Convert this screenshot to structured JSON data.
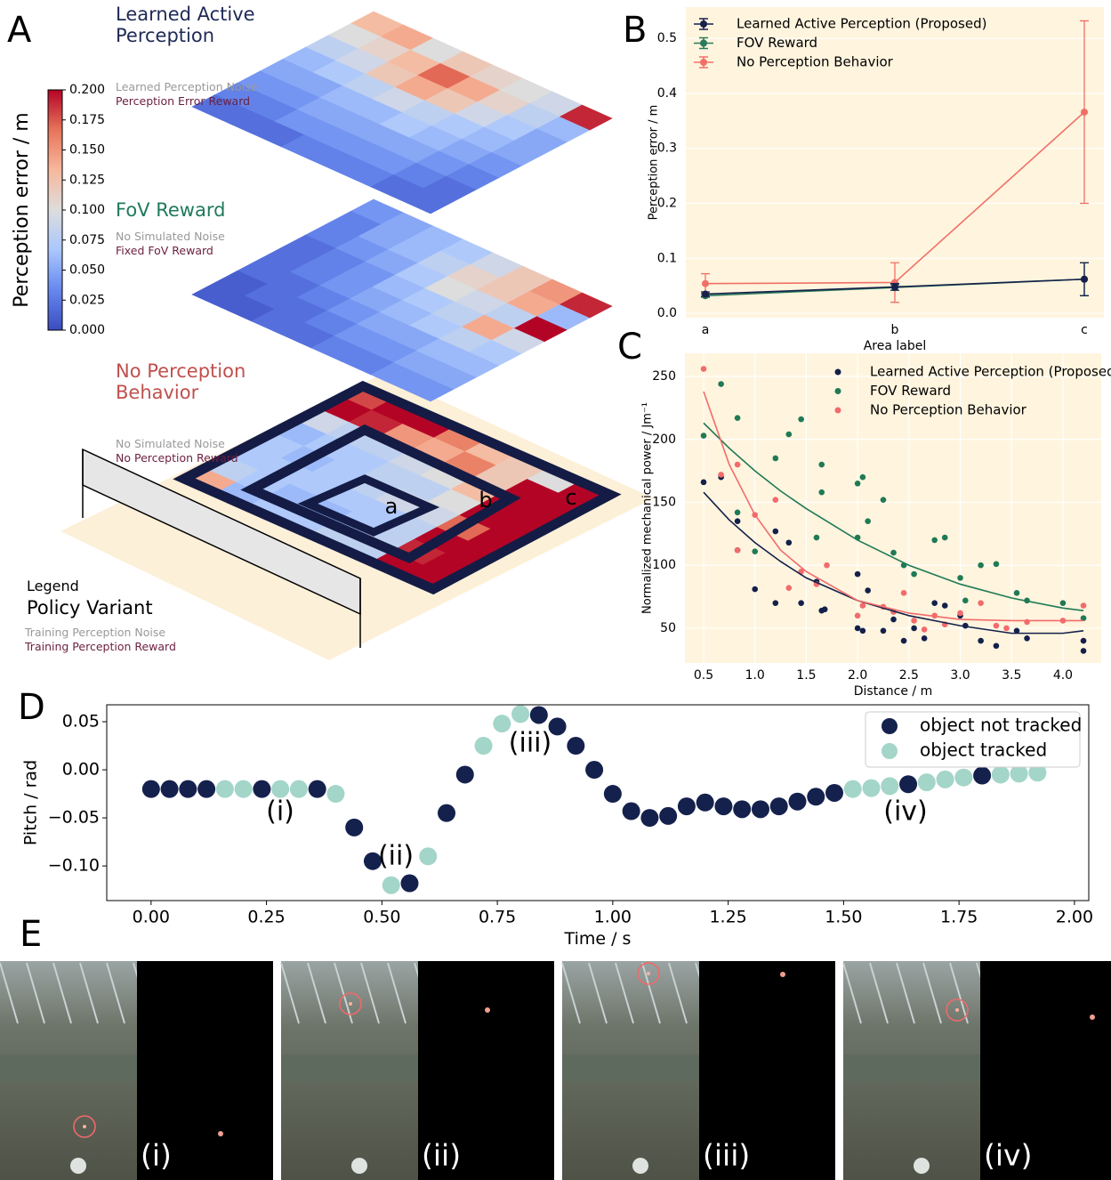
{
  "panel_labels": [
    "A",
    "B",
    "C",
    "D",
    "E"
  ],
  "heatmaps": {
    "colorbar": {
      "label": "Perception error / m",
      "lim": [
        0,
        0.2
      ],
      "ticks": [
        {
          "value": 0,
          "label": "0.000"
        },
        0.025,
        {
          "value": 0.05,
          "label": "0.050"
        },
        0.075,
        {
          "value": 0.1,
          "label": "0.100"
        },
        0.125,
        {
          "value": 0.15,
          "label": "0.150"
        },
        0.175,
        {
          "value": 0.2,
          "label": "0.200"
        }
      ],
      "colormap": [
        "#3b4cc0",
        "#6688ee",
        "#aac7fd",
        "#dddddd",
        "#f7b89c",
        "#e7745b",
        "#b40426"
      ]
    },
    "layers": [
      {
        "title": "Learned Active Perception",
        "noise": "Learned Perception Noise",
        "reward": "Perception Error Reward",
        "title_color": "#1f2a55",
        "grid": [
          [
            0.13,
            0.14,
            0.1,
            0.12,
            0.11,
            0.1,
            0.09,
            0.19
          ],
          [
            0.1,
            0.11,
            0.13,
            0.17,
            0.14,
            0.11,
            0.08,
            0.06
          ],
          [
            0.08,
            0.09,
            0.12,
            0.14,
            0.12,
            0.09,
            0.07,
            0.05
          ],
          [
            0.06,
            0.07,
            0.08,
            0.09,
            0.08,
            0.07,
            0.06,
            0.05
          ],
          [
            0.05,
            0.05,
            0.06,
            0.06,
            0.07,
            0.06,
            0.05,
            0.04
          ],
          [
            0.04,
            0.04,
            0.05,
            0.05,
            0.05,
            0.05,
            0.04,
            0.03
          ],
          [
            0.03,
            0.03,
            0.04,
            0.04,
            0.04,
            0.04,
            0.03,
            0.02
          ],
          [
            0.02,
            0.02,
            0.02,
            0.03,
            0.03,
            0.03,
            0.02,
            0.02
          ]
        ]
      },
      {
        "title": "FoV Reward",
        "noise": "No Simulated Noise",
        "reward": "Fixed FoV Reward",
        "title_color": "#1f7a5a",
        "grid": [
          [
            0.04,
            0.05,
            0.06,
            0.07,
            0.09,
            0.12,
            0.15,
            0.19
          ],
          [
            0.03,
            0.05,
            0.06,
            0.08,
            0.11,
            0.12,
            0.14,
            0.06
          ],
          [
            0.03,
            0.04,
            0.05,
            0.07,
            0.1,
            0.09,
            0.08,
            0.2
          ],
          [
            0.02,
            0.03,
            0.04,
            0.06,
            0.07,
            0.08,
            0.14,
            0.09
          ],
          [
            0.02,
            0.03,
            0.04,
            0.05,
            0.06,
            0.07,
            0.08,
            0.07
          ],
          [
            0.02,
            0.02,
            0.03,
            0.04,
            0.05,
            0.05,
            0.06,
            0.06
          ],
          [
            0.01,
            0.02,
            0.02,
            0.03,
            0.04,
            0.04,
            0.05,
            0.05
          ],
          [
            0.01,
            0.01,
            0.02,
            0.02,
            0.03,
            0.03,
            0.04,
            0.04
          ]
        ]
      },
      {
        "title": "No Perception Behavior",
        "noise": "No Simulated Noise",
        "reward": "No Perception Reward",
        "title_color": "#c0504d",
        "grid": [
          [
            0.18,
            0.2,
            0.2,
            0.16,
            0.13,
            0.12,
            0.1,
            0.2
          ],
          [
            0.2,
            0.19,
            0.15,
            0.14,
            0.16,
            0.12,
            0.2,
            0.2
          ],
          [
            0.09,
            0.08,
            0.08,
            0.09,
            0.1,
            0.13,
            0.2,
            0.2
          ],
          [
            0.06,
            0.07,
            0.07,
            0.08,
            0.08,
            0.1,
            0.2,
            0.2
          ],
          [
            0.07,
            0.06,
            0.07,
            0.08,
            0.09,
            0.09,
            0.17,
            0.2
          ],
          [
            0.07,
            0.07,
            0.07,
            0.07,
            0.07,
            0.08,
            0.2,
            0.2
          ],
          [
            0.08,
            0.07,
            0.06,
            0.06,
            0.07,
            0.08,
            0.19,
            0.2
          ],
          [
            0.14,
            0.06,
            0.07,
            0.07,
            0.08,
            0.08,
            0.2,
            0.2
          ]
        ]
      }
    ],
    "area_labels": [
      "a",
      "b",
      "c"
    ],
    "legend": {
      "heading": "Legend",
      "title": "Policy Variant",
      "noise": "Training Perception Noise",
      "reward": "Training Perception Reward"
    }
  },
  "chart_data": [
    {
      "type": "line",
      "xlabel": "Area label",
      "ylabel": "Perception error / m",
      "categories": [
        "a",
        "b",
        "c"
      ],
      "ylim": [
        -0.008,
        0.557
      ],
      "yticks": [
        {
          "value": 0,
          "label": "0.0"
        },
        0.1,
        0.2,
        0.3,
        0.4,
        0.5
      ],
      "grid": true,
      "background": "#fff4de",
      "legend": "upper left",
      "series": [
        {
          "name": "Learned Active Perception (Proposed)",
          "color": "#16204a",
          "values": [
            0.035,
            0.048,
            0.062
          ],
          "errors": [
            0.004,
            0.006,
            0.03
          ]
        },
        {
          "name": "FOV Reward",
          "color": "#2a7a5a",
          "values": [
            0.032,
            0.047,
            0.062
          ],
          "errors": [
            0.003,
            0.005,
            0.03
          ]
        },
        {
          "name": "No Perception Behavior",
          "color": "#f07067",
          "values": [
            0.054,
            0.056,
            0.366
          ],
          "errors": [
            0.018,
            0.036,
            0.166
          ]
        }
      ]
    },
    {
      "type": "scatter",
      "xlabel": "Distance / m",
      "ylabel": "Normalized mechanical power / Jm⁻¹",
      "xlim": [
        0.318,
        4.373
      ],
      "xticks": [
        0.5,
        {
          "value": 1,
          "label": "1.0"
        },
        1.5,
        {
          "value": 2,
          "label": "2.0"
        },
        2.5,
        {
          "value": 3,
          "label": "3.0"
        },
        3.5,
        {
          "value": 4,
          "label": "4.0"
        }
      ],
      "ylim": [
        22.4,
        268.4
      ],
      "yticks": [
        50,
        100,
        150,
        200,
        250
      ],
      "grid": true,
      "background": "#fff4de",
      "legend": "upper right",
      "fit_x": [
        0.5,
        0.75,
        1,
        1.25,
        1.5,
        2,
        2.5,
        3,
        3.5,
        4,
        4.2
      ],
      "series": [
        {
          "name": "Learned Active Perception (Proposed)",
          "color": "#13204b",
          "x": [
            0.5,
            0.67,
            0.83,
            0.83,
            1.0,
            1.2,
            1.2,
            1.33,
            1.45,
            1.6,
            1.65,
            1.68,
            2.0,
            2.0,
            2.05,
            2.1,
            2.25,
            2.35,
            2.45,
            2.55,
            2.65,
            2.75,
            2.85,
            3.0,
            3.05,
            3.2,
            3.35,
            3.55,
            3.65,
            4.2,
            4.2
          ],
          "values": [
            166,
            170,
            135,
            112,
            81,
            70,
            127,
            118,
            70,
            87,
            64,
            65,
            50,
            93,
            48,
            80,
            48,
            57,
            40,
            50,
            42,
            70,
            68,
            60,
            52,
            40,
            36,
            48,
            42,
            40,
            32
          ],
          "fit": [
            158,
            136,
            118,
            103,
            90,
            72,
            60,
            52,
            46,
            46,
            48
          ]
        },
        {
          "name": "FOV Reward",
          "color": "#1f7a55",
          "x": [
            0.5,
            0.67,
            0.83,
            0.83,
            1.0,
            1.2,
            1.33,
            1.45,
            1.6,
            1.65,
            1.65,
            2.0,
            2.0,
            2.05,
            2.1,
            2.25,
            2.35,
            2.45,
            2.55,
            2.75,
            2.85,
            3.0,
            3.05,
            3.2,
            3.35,
            3.55,
            3.65,
            4.0,
            4.2
          ],
          "values": [
            203,
            244,
            217,
            142,
            111,
            185,
            204,
            216,
            122,
            180,
            158,
            122,
            165,
            170,
            135,
            152,
            110,
            100,
            93,
            120,
            122,
            90,
            72,
            100,
            101,
            78,
            72,
            70,
            58
          ],
          "fit": [
            213,
            193,
            175,
            159,
            145,
            120,
            100,
            85,
            74,
            66,
            64
          ]
        },
        {
          "name": "No Perception Behavior",
          "color": "#f26b6b",
          "x": [
            0.5,
            0.67,
            0.83,
            0.83,
            1.0,
            1.2,
            1.33,
            1.45,
            1.6,
            1.7,
            2.0,
            2.05,
            2.25,
            2.35,
            2.45,
            2.55,
            2.65,
            2.75,
            2.85,
            3.0,
            3.2,
            3.35,
            3.45,
            3.65,
            4.0,
            4.2
          ],
          "values": [
            256,
            172,
            180,
            112,
            140,
            152,
            82,
            95,
            85,
            100,
            60,
            68,
            67,
            63,
            78,
            56,
            49,
            60,
            53,
            62,
            70,
            52,
            50,
            55,
            56,
            68
          ],
          "fit": [
            238,
            180,
            140,
            112,
            95,
            72,
            62,
            57,
            56,
            56,
            56
          ]
        }
      ]
    },
    {
      "type": "scatter",
      "xlabel": "Time / s",
      "ylabel": "Pitch / rad",
      "xlim": [
        -0.096,
        2.031
      ],
      "xticks": [
        {
          "value": 0,
          "label": "0.00"
        },
        {
          "value": 0.25,
          "label": "0.25"
        },
        {
          "value": 0.5,
          "label": "0.50"
        },
        {
          "value": 0.75,
          "label": "0.75"
        },
        {
          "value": 1,
          "label": "1.00"
        },
        {
          "value": 1.25,
          "label": "1.25"
        },
        {
          "value": 1.5,
          "label": "1.50"
        },
        {
          "value": 1.75,
          "label": "1.75"
        },
        {
          "value": 2,
          "label": "2.00"
        }
      ],
      "ylim": [
        -0.136,
        0.0676
      ],
      "yticks": [
        {
          "value": 0.05,
          "label": "0.05"
        },
        {
          "value": 0,
          "label": "0.00"
        },
        {
          "value": -0.05,
          "label": "−0.05"
        },
        {
          "value": -0.1,
          "label": "−0.10"
        }
      ],
      "grid": false,
      "background": "#ffffff",
      "legend": "upper right",
      "annotations": [
        "(i)",
        "(ii)",
        "(iii)",
        "(iv)"
      ],
      "series": [
        {
          "name": "object not tracked",
          "color": "#15214d",
          "x": [
            0,
            0.04,
            0.08,
            0.12,
            0.24,
            0.36,
            0.44,
            0.48,
            0.56,
            0.64,
            0.68,
            0.84,
            0.88,
            0.92,
            0.96,
            1.0,
            1.04,
            1.08,
            1.12,
            1.16,
            1.2,
            1.24,
            1.28,
            1.32,
            1.36,
            1.4,
            1.44,
            1.48,
            1.64,
            1.8
          ],
          "values": [
            -0.02,
            -0.02,
            -0.02,
            -0.02,
            -0.02,
            -0.02,
            -0.06,
            -0.095,
            -0.118,
            -0.045,
            -0.005,
            0.057,
            0.045,
            0.025,
            0,
            -0.025,
            -0.043,
            -0.05,
            -0.048,
            -0.038,
            -0.034,
            -0.038,
            -0.041,
            -0.041,
            -0.038,
            -0.033,
            -0.028,
            -0.024,
            -0.015,
            -0.006
          ]
        },
        {
          "name": "object tracked",
          "color": "#a3d5c8",
          "x": [
            0.16,
            0.2,
            0.28,
            0.32,
            0.4,
            0.52,
            0.6,
            0.72,
            0.76,
            0.8,
            1.52,
            1.56,
            1.6,
            1.68,
            1.72,
            1.76,
            1.84,
            1.88,
            1.92
          ],
          "values": [
            -0.02,
            -0.02,
            -0.02,
            -0.02,
            -0.025,
            -0.12,
            -0.09,
            0.025,
            0.048,
            0.058,
            -0.02,
            -0.019,
            -0.017,
            -0.013,
            -0.01,
            -0.008,
            -0.005,
            -0.004,
            -0.003
          ]
        }
      ]
    }
  ],
  "photos": {
    "labels": [
      "(i)",
      "(ii)",
      "(iii)",
      "(iv)"
    ]
  }
}
